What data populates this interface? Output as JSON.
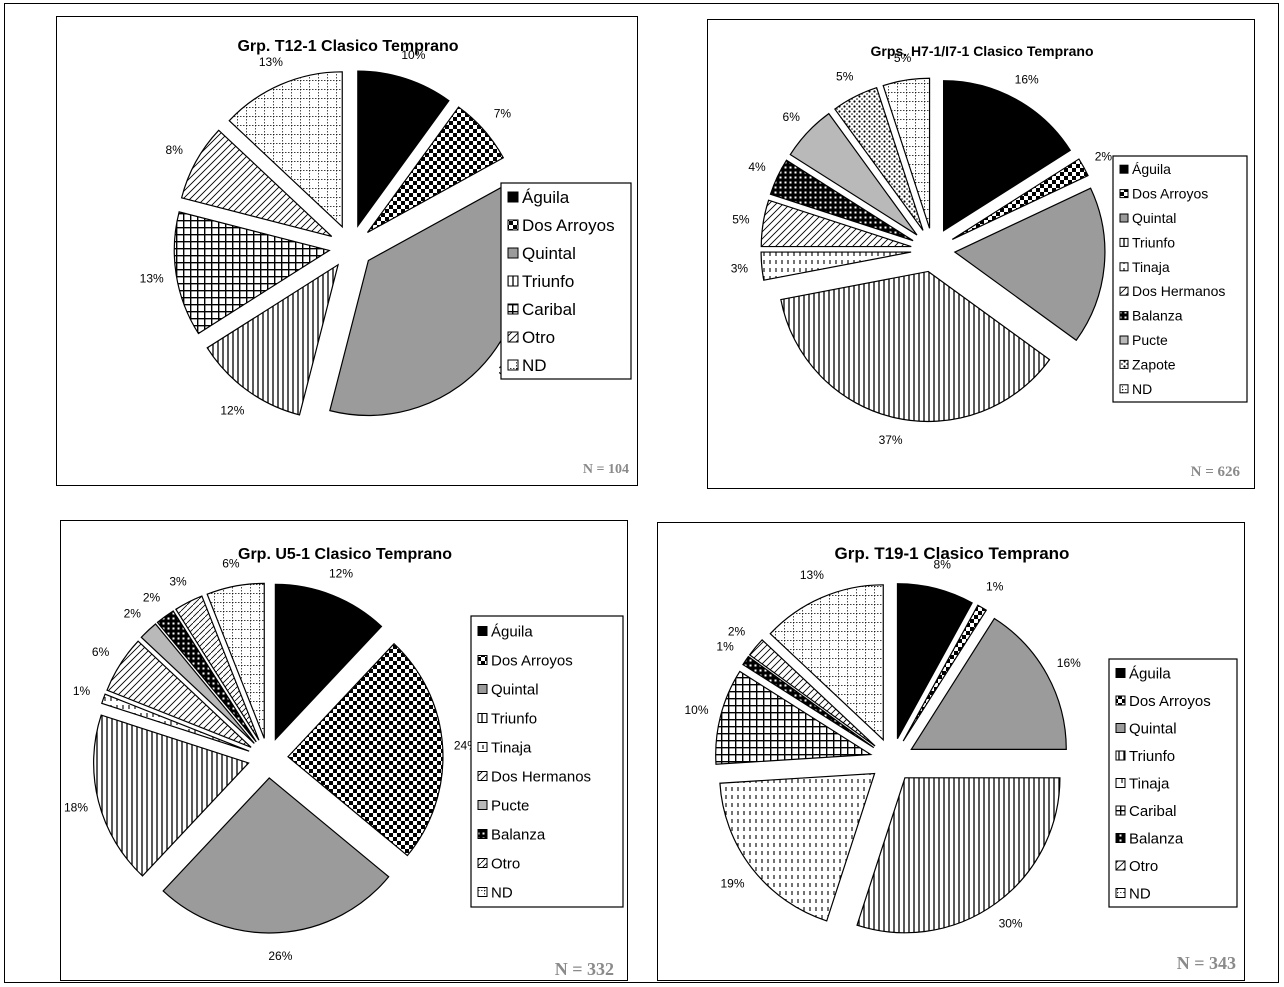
{
  "chart_data": [
    {
      "type": "pie",
      "title": "Grp. T12-1 Clasico Temprano",
      "n_label": "N = 104",
      "slices": [
        {
          "label": "Águila",
          "value": 10,
          "pct_label": "10%",
          "pattern": "solid"
        },
        {
          "label": "Dos Arroyos",
          "value": 7,
          "pct_label": "7%",
          "pattern": "checker"
        },
        {
          "label": "Quintal",
          "value": 37,
          "pct_label": "37%",
          "pattern": "gray"
        },
        {
          "label": "Triunfo",
          "value": 12,
          "pct_label": "12%",
          "pattern": "vlines"
        },
        {
          "label": "Caribal",
          "value": 13,
          "pct_label": "13%",
          "pattern": "grid"
        },
        {
          "label": "Otro",
          "value": 8,
          "pct_label": "8%",
          "pattern": "diag"
        },
        {
          "label": "ND",
          "value": 13,
          "pct_label": "13%",
          "pattern": "dotgrid"
        }
      ]
    },
    {
      "type": "pie",
      "title": "Grps. H7-1/I7-1 Clasico Temprano",
      "n_label": "N = 626",
      "slices": [
        {
          "label": "Águila",
          "value": 16,
          "pct_label": "16%",
          "pattern": "solid"
        },
        {
          "label": "Dos Arroyos",
          "value": 2,
          "pct_label": "2%",
          "pattern": "checker"
        },
        {
          "label": "Quintal",
          "value": 17,
          "pct_label": "17%",
          "pattern": "gray"
        },
        {
          "label": "Triunfo",
          "value": 37,
          "pct_label": "37%",
          "pattern": "vlines"
        },
        {
          "label": "Tinaja",
          "value": 3,
          "pct_label": "3%",
          "pattern": "dashv"
        },
        {
          "label": "Dos Hermanos",
          "value": 5,
          "pct_label": "5%",
          "pattern": "diag"
        },
        {
          "label": "Balanza",
          "value": 4,
          "pct_label": "4%",
          "pattern": "darkgrid"
        },
        {
          "label": "Pucte",
          "value": 6,
          "pct_label": "6%",
          "pattern": "lightgray"
        },
        {
          "label": "Zapote",
          "value": 5,
          "pct_label": "5%",
          "pattern": "dots"
        },
        {
          "label": "ND",
          "value": 5,
          "pct_label": "5%",
          "pattern": "dotgrid"
        }
      ]
    },
    {
      "type": "pie",
      "title": "Grp. U5-1 Clasico Temprano",
      "n_label": "N = 332",
      "slices": [
        {
          "label": "Águila",
          "value": 12,
          "pct_label": "12%",
          "pattern": "solid"
        },
        {
          "label": "Dos Arroyos",
          "value": 24,
          "pct_label": "24%",
          "pattern": "checker"
        },
        {
          "label": "Quintal",
          "value": 26,
          "pct_label": "26%",
          "pattern": "gray"
        },
        {
          "label": "Triunfo",
          "value": 18,
          "pct_label": "18%",
          "pattern": "vlines"
        },
        {
          "label": "Tinaja",
          "value": 1,
          "pct_label": "1%",
          "pattern": "dashv"
        },
        {
          "label": "Dos Hermanos",
          "value": 6,
          "pct_label": "6%",
          "pattern": "diag"
        },
        {
          "label": "Pucte",
          "value": 2,
          "pct_label": "2%",
          "pattern": "lightgray"
        },
        {
          "label": "Balanza",
          "value": 2,
          "pct_label": "2%",
          "pattern": "darkgrid"
        },
        {
          "label": "Otro",
          "value": 3,
          "pct_label": "3%",
          "pattern": "diag2"
        },
        {
          "label": "ND",
          "value": 6,
          "pct_label": "6%",
          "pattern": "dotgrid"
        }
      ]
    },
    {
      "type": "pie",
      "title": "Grp. T19-1 Clasico Temprano",
      "n_label": "N = 343",
      "slices": [
        {
          "label": "Águila",
          "value": 8,
          "pct_label": "8%",
          "pattern": "solid"
        },
        {
          "label": "Dos Arroyos",
          "value": 1,
          "pct_label": "1%",
          "pattern": "checker"
        },
        {
          "label": "Quintal",
          "value": 16,
          "pct_label": "16%",
          "pattern": "gray"
        },
        {
          "label": "Triunfo",
          "value": 30,
          "pct_label": "30%",
          "pattern": "vlines"
        },
        {
          "label": "Tinaja",
          "value": 19,
          "pct_label": "19%",
          "pattern": "dashv"
        },
        {
          "label": "Caribal",
          "value": 10,
          "pct_label": "10%",
          "pattern": "grid"
        },
        {
          "label": "Balanza",
          "value": 1,
          "pct_label": "1%",
          "pattern": "darkgrid"
        },
        {
          "label": "Otro",
          "value": 2,
          "pct_label": "2%",
          "pattern": "diag"
        },
        {
          "label": "ND",
          "value": 13,
          "pct_label": "13%",
          "pattern": "dotgrid"
        }
      ]
    }
  ]
}
